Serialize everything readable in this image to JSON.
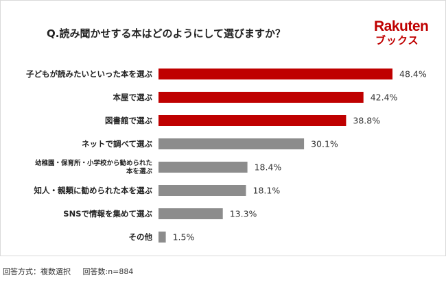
{
  "title": "Q.読み聞かせする本はどのようにして選びますか？",
  "logo": {
    "line1": "Rakuten",
    "line2": "ブックス"
  },
  "colors": {
    "highlight": "#bf0000",
    "default": "#8c8c8c"
  },
  "footnote": {
    "method": "回答方式：複数選択",
    "count": "回答数:n=884"
  },
  "chart_data": {
    "type": "bar",
    "orientation": "horizontal",
    "title": "Q.読み聞かせする本はどのようにして選びますか？",
    "unit": "%",
    "xlim": [
      0,
      100
    ],
    "categories": [
      [
        "子どもが読みたいといった本を選ぶ"
      ],
      [
        "本屋で選ぶ"
      ],
      [
        "図書館で選ぶ"
      ],
      [
        "ネットで調べて選ぶ"
      ],
      [
        "幼稚園・保育所・小学校から勧められた",
        "本を選ぶ"
      ],
      [
        "知人・親類に勧められた本を選ぶ"
      ],
      [
        "SNSで情報を集めて選ぶ"
      ],
      [
        "その他"
      ]
    ],
    "values": [
      48.4,
      42.4,
      38.8,
      30.1,
      18.4,
      18.1,
      13.3,
      1.5
    ],
    "value_labels": [
      "48.4%",
      "42.4%",
      "38.8%",
      "30.1%",
      "18.4%",
      "18.1%",
      "13.3%",
      "1.5%"
    ],
    "highlighted": [
      true,
      true,
      true,
      false,
      false,
      false,
      false,
      false
    ]
  }
}
